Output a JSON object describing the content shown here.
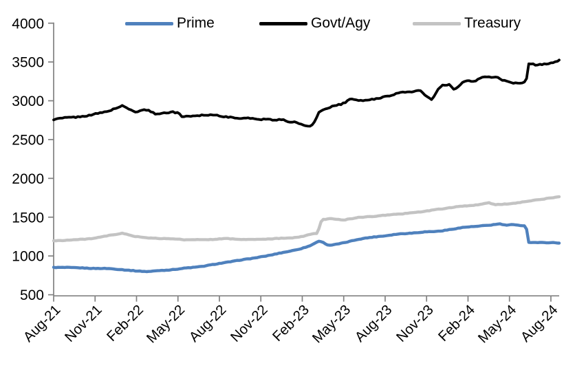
{
  "chart_data": {
    "type": "line",
    "title": "",
    "xlabel": "",
    "ylabel": "",
    "grid": false,
    "legend_position": "top",
    "x_unit": "months since Aug-2021",
    "x_max_month": 36.6,
    "x_axis": {
      "tick_interval_months": 3,
      "tick_labels": [
        "Aug-21",
        "Nov-21",
        "Feb-22",
        "May-22",
        "Aug-22",
        "Nov-22",
        "Feb-23",
        "May-23",
        "Aug-23",
        "Nov-23",
        "Feb-24",
        "May-24",
        "Aug-24"
      ]
    },
    "y_axis": {
      "min": 500,
      "max": 4000,
      "step": 500,
      "tick_labels": [
        "500",
        "1000",
        "1500",
        "2000",
        "2500",
        "3000",
        "3500",
        "4000"
      ]
    },
    "series": [
      {
        "name": "Prime",
        "color": "#4f81bd",
        "stroke_width": 4.4,
        "jitter": 6,
        "x": [
          0,
          1,
          2,
          3,
          4,
          5,
          6,
          7,
          8,
          9,
          10,
          11,
          12,
          13,
          14,
          15,
          16,
          17,
          18,
          18.6,
          19.0,
          19.3,
          19.9,
          20.4,
          21,
          22,
          23,
          24,
          25,
          26,
          27,
          28,
          29,
          30,
          31,
          31.8,
          32.3,
          32.7,
          33.1,
          33.6,
          34.2,
          34.38,
          34.6,
          35,
          36,
          36.6
        ],
        "values": [
          855,
          848,
          845,
          840,
          832,
          818,
          806,
          802,
          812,
          830,
          850,
          875,
          905,
          932,
          962,
          990,
          1022,
          1060,
          1098,
          1130,
          1172,
          1190,
          1138,
          1150,
          1170,
          1208,
          1240,
          1263,
          1283,
          1298,
          1310,
          1325,
          1352,
          1373,
          1392,
          1405,
          1412,
          1390,
          1402,
          1398,
          1393,
          1182,
          1178,
          1176,
          1172,
          1166
        ]
      },
      {
        "name": "Govt/Agy",
        "color": "#000000",
        "stroke_width": 3.8,
        "jitter": 14,
        "x": [
          0,
          1,
          2,
          3,
          4,
          5,
          5.5,
          6,
          6.5,
          7,
          7.3,
          8,
          8.6,
          9,
          9.3,
          10,
          11,
          12,
          13,
          14,
          15,
          15.5,
          16,
          16.4,
          17,
          17.5,
          18,
          18.4,
          18.8,
          19.2,
          19.6,
          20,
          21,
          21.6,
          22,
          23,
          24,
          25,
          25.8,
          26.5,
          27.1,
          27.4,
          27.8,
          28.2,
          28.7,
          29.0,
          29.5,
          30,
          30.4,
          31,
          31.6,
          32.1,
          32.6,
          33.1,
          33.6,
          34.2,
          34.38,
          34.8,
          35.3,
          36,
          36.6
        ],
        "values": [
          2770,
          2778,
          2792,
          2820,
          2866,
          2928,
          2880,
          2852,
          2890,
          2872,
          2830,
          2842,
          2858,
          2852,
          2804,
          2806,
          2812,
          2810,
          2790,
          2772,
          2762,
          2780,
          2742,
          2762,
          2720,
          2736,
          2684,
          2666,
          2700,
          2860,
          2900,
          2925,
          2968,
          3035,
          3008,
          3020,
          3045,
          3090,
          3128,
          3135,
          3040,
          3002,
          3130,
          3200,
          3215,
          3145,
          3230,
          3262,
          3240,
          3290,
          3312,
          3298,
          3252,
          3230,
          3238,
          3243,
          3482,
          3465,
          3462,
          3492,
          3528
        ]
      },
      {
        "name": "Treasury",
        "color": "#c3c3c3",
        "stroke_width": 4.4,
        "jitter": 6,
        "x": [
          0,
          1,
          2,
          3,
          4,
          5,
          5.5,
          6,
          7,
          8,
          9,
          10,
          11,
          12,
          13,
          14,
          15,
          16,
          17,
          18,
          18.8,
          19.1,
          19.4,
          20,
          21,
          22,
          23,
          24,
          25,
          26,
          27,
          28,
          29,
          30,
          31,
          31.5,
          32,
          32.5,
          33,
          34,
          35,
          36,
          36.6
        ],
        "values": [
          1198,
          1204,
          1214,
          1232,
          1262,
          1293,
          1272,
          1252,
          1230,
          1224,
          1217,
          1210,
          1214,
          1220,
          1218,
          1213,
          1215,
          1224,
          1232,
          1250,
          1284,
          1288,
          1462,
          1478,
          1468,
          1496,
          1512,
          1522,
          1544,
          1562,
          1578,
          1600,
          1632,
          1645,
          1672,
          1684,
          1660,
          1668,
          1675,
          1700,
          1724,
          1748,
          1758
        ]
      }
    ],
    "style": {
      "axis_color": "#808080",
      "tick_label_color": "#000000",
      "tick_label_size": 20.5,
      "background": "#ffffff"
    }
  },
  "legend": {
    "swatch_icon": "line-swatch"
  }
}
